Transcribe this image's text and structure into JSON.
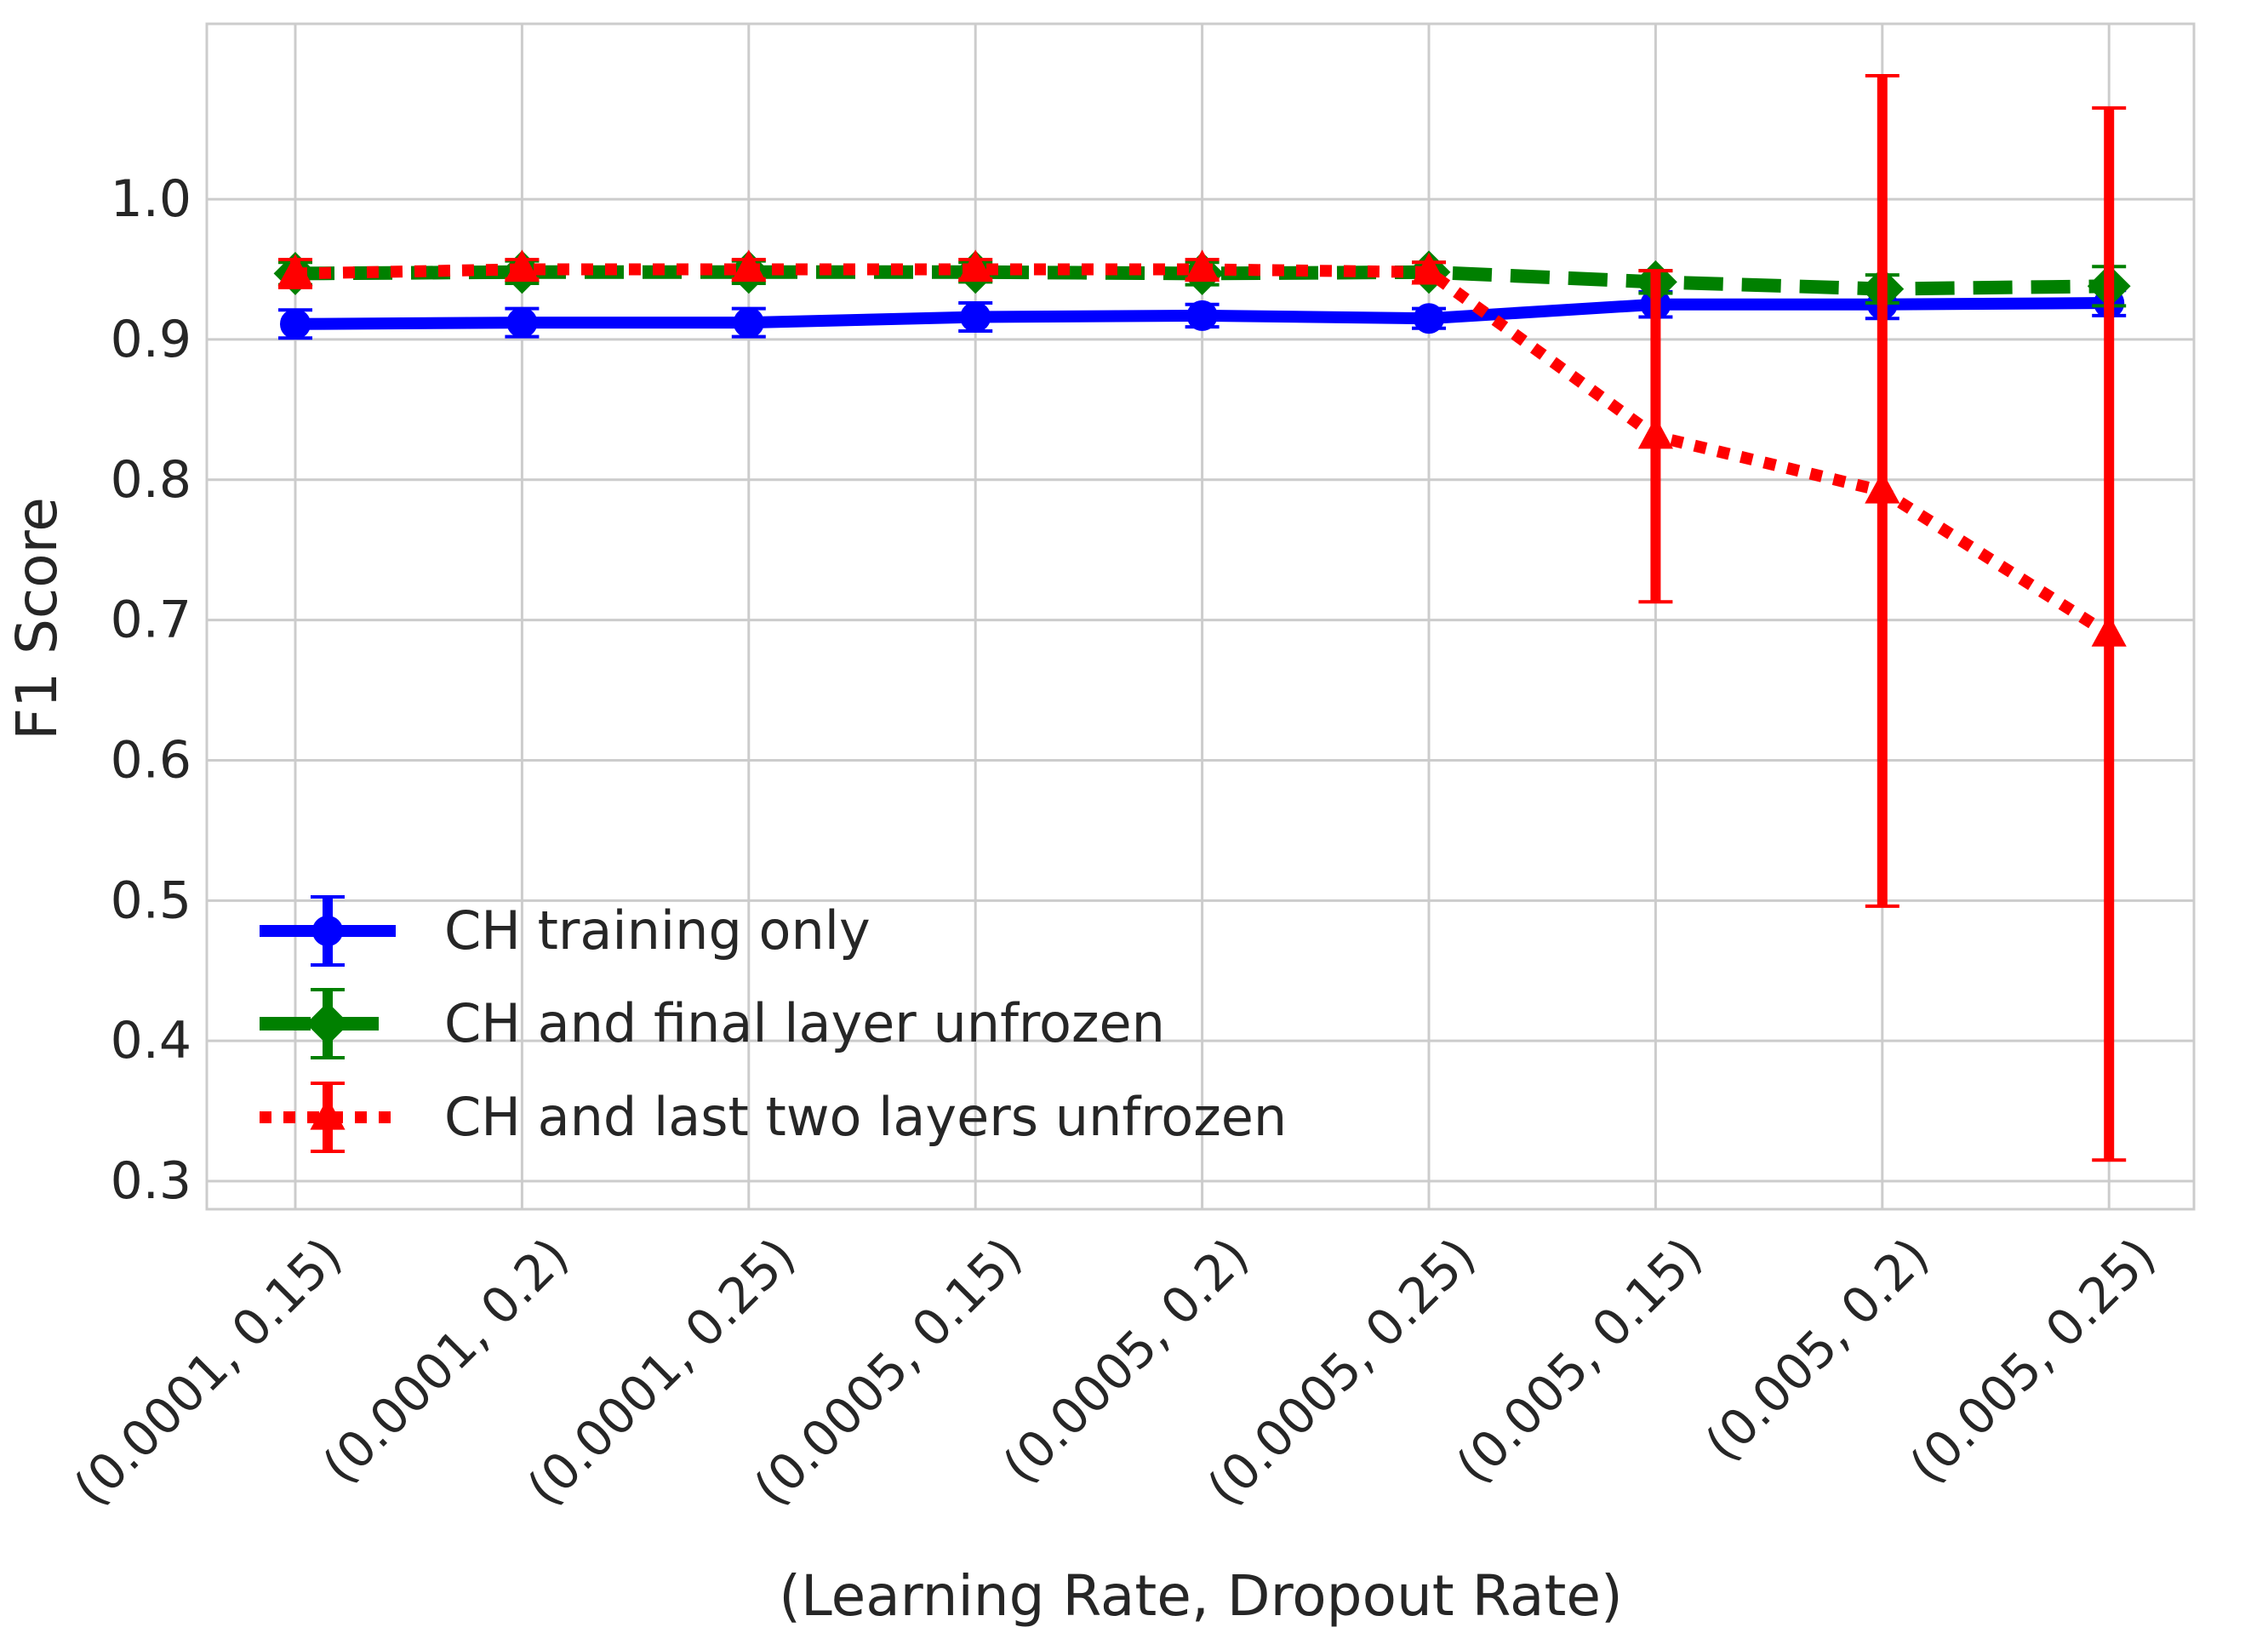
{
  "chart_data": {
    "type": "line",
    "title": "",
    "xlabel": "(Learning Rate, Dropout Rate)",
    "ylabel": "F1 Score",
    "categories": [
      "(0.0001, 0.15)",
      "(0.0001, 0.2)",
      "(0.0001, 0.25)",
      "(0.0005, 0.15)",
      "(0.0005, 0.2)",
      "(0.0005, 0.25)",
      "(0.005, 0.15)",
      "(0.005, 0.2)",
      "(0.005, 0.25)"
    ],
    "yticks": [
      "0.3",
      "0.4",
      "0.5",
      "0.6",
      "0.7",
      "0.8",
      "0.9",
      "1.0"
    ],
    "ylim": [
      0.28,
      1.125
    ],
    "grid": true,
    "legend_position": "lower-left",
    "series": [
      {
        "name": "CH training only",
        "color": "#0000ff",
        "line_style": "solid",
        "marker": "circle",
        "values": [
          0.911,
          0.912,
          0.912,
          0.916,
          0.917,
          0.915,
          0.925,
          0.925,
          0.926
        ],
        "errors": [
          0.01,
          0.01,
          0.01,
          0.01,
          0.008,
          0.007,
          0.009,
          0.01,
          0.009
        ]
      },
      {
        "name": "CH and final layer unfrozen",
        "color": "#008000",
        "line_style": "dashed",
        "marker": "diamond",
        "values": [
          0.947,
          0.948,
          0.948,
          0.948,
          0.947,
          0.948,
          0.941,
          0.936,
          0.938
        ],
        "errors": [
          0.008,
          0.008,
          0.008,
          0.007,
          0.008,
          0.007,
          0.008,
          0.01,
          0.014
        ]
      },
      {
        "name": "CH and last two layers unfrozen",
        "color": "#ff0000",
        "line_style": "dotted",
        "marker": "triangle",
        "values": [
          0.947,
          0.95,
          0.95,
          0.95,
          0.95,
          0.948,
          0.831,
          0.792,
          0.69
        ],
        "errors": [
          0.01,
          0.007,
          0.007,
          0.007,
          0.007,
          0.007,
          0.118,
          0.296,
          0.375
        ]
      }
    ]
  }
}
